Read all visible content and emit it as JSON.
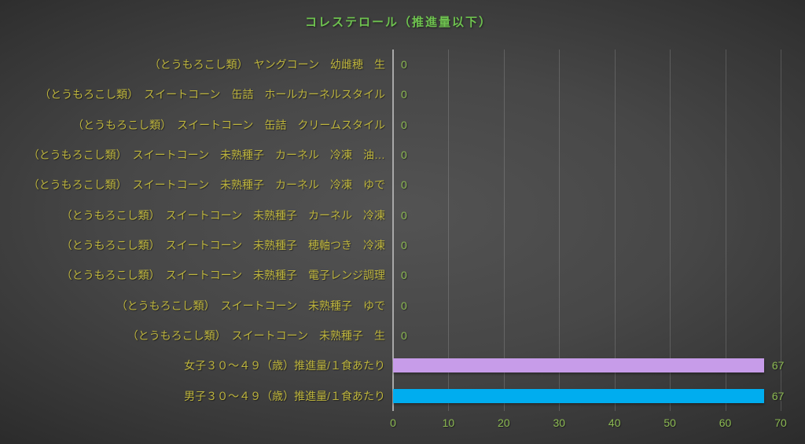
{
  "colors": {
    "background_center": "#535353",
    "background_edge": "#222222",
    "title": "#6ec24f",
    "category_label": "#bdb43c",
    "value_label": "#8cba52",
    "tick_label": "#8cba52",
    "axis_line": "#a8a8a8",
    "gridline": "rgba(255,255,255,0.16)"
  },
  "chart_data": {
    "type": "bar",
    "orientation": "horizontal",
    "title": "コレステロール（推進量以下）",
    "xlabel": "",
    "ylabel": "",
    "xlim": [
      0,
      70
    ],
    "x_ticks": [
      0,
      10,
      20,
      30,
      40,
      50,
      60,
      70
    ],
    "grid": true,
    "legend": "none",
    "categories": [
      "（とうもろこし類）　ヤングコーン　幼雌穂　生",
      "（とうもろこし類）　スイートコーン　缶詰　ホールカーネルスタイル",
      "（とうもろこし類）　スイートコーン　缶詰　クリームスタイル",
      "（とうもろこし類）　スイートコーン　未熟種子　カーネル　冷凍　油…",
      "（とうもろこし類）　スイートコーン　未熟種子　カーネル　冷凍　ゆで",
      "（とうもろこし類）　スイートコーン　未熟種子　カーネル　冷凍",
      "（とうもろこし類）　スイートコーン　未熟種子　穂軸つき　冷凍",
      "（とうもろこし類）　スイートコーン　未熟種子　電子レンジ調理",
      "（とうもろこし類）　スイートコーン　未熟種子　ゆで",
      "（とうもろこし類）　スイートコーン　未熟種子　生",
      "女子３０～４９（歳）推進量/１食あたり",
      "男子３０～４９（歳）推進量/１食あたり"
    ],
    "values": [
      0,
      0,
      0,
      0,
      0,
      0,
      0,
      0,
      0,
      0,
      67,
      67
    ],
    "data_labels": [
      "0",
      "0",
      "0",
      "0",
      "0",
      "0",
      "0",
      "0",
      "0",
      "0",
      "67",
      "67"
    ],
    "bar_colors": [
      "none",
      "none",
      "none",
      "none",
      "none",
      "none",
      "none",
      "none",
      "none",
      "none",
      "#c79ce9",
      "#00adef"
    ]
  }
}
